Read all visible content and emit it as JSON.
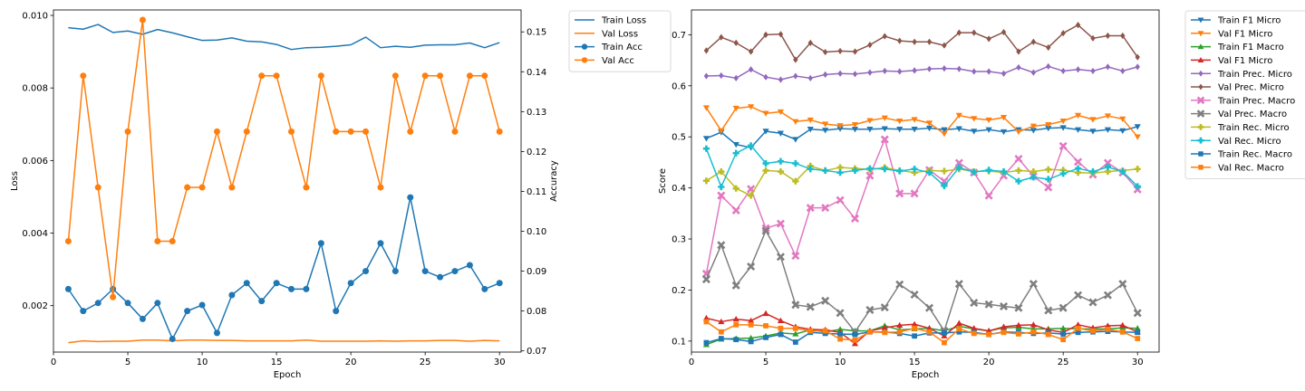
{
  "chart_data": [
    {
      "type": "line",
      "xlabel": "Epoch",
      "ylabel": "Loss",
      "y2label": "Accuracy",
      "xlim": [
        0,
        31.45
      ],
      "ylim": [
        0.00072,
        0.01015
      ],
      "y2lim": [
        0.0697,
        0.1555
      ],
      "xticks": [
        0,
        5,
        10,
        15,
        20,
        25,
        30
      ],
      "yticks": [
        0.002,
        0.004,
        0.006,
        0.008,
        0.01
      ],
      "ytick_labels": [
        "0.002",
        "0.004",
        "0.006",
        "0.008",
        "0.010"
      ],
      "y2ticks": [
        0.07,
        0.08,
        0.09,
        0.1,
        0.11,
        0.12,
        0.13,
        0.14,
        0.15
      ],
      "y2tick_labels": [
        "0.07",
        "0.08",
        "0.09",
        "0.10",
        "0.11",
        "0.12",
        "0.13",
        "0.14",
        "0.15"
      ],
      "legend_position": "outside upper right",
      "x": [
        1,
        2,
        3,
        4,
        5,
        6,
        7,
        8,
        9,
        10,
        11,
        12,
        13,
        14,
        15,
        16,
        17,
        18,
        19,
        20,
        21,
        22,
        23,
        24,
        25,
        26,
        27,
        28,
        29,
        30
      ],
      "series": [
        {
          "name": "Train Loss",
          "axis": "left",
          "color": "#1f77b4",
          "marker": "none",
          "values": [
            0.00966,
            0.00962,
            0.00975,
            0.00953,
            0.00957,
            0.00948,
            0.00961,
            0.00952,
            0.00941,
            0.00931,
            0.00932,
            0.00938,
            0.00929,
            0.00927,
            0.0092,
            0.00906,
            0.00911,
            0.00912,
            0.00915,
            0.00919,
            0.0094,
            0.00911,
            0.00915,
            0.00912,
            0.00918,
            0.00919,
            0.00919,
            0.00924,
            0.00911,
            0.00925
          ]
        },
        {
          "name": "Val Loss",
          "axis": "left",
          "color": "#ff7f0e",
          "marker": "none",
          "values": [
            0.00098,
            0.00103,
            0.00101,
            0.00102,
            0.00102,
            0.00105,
            0.00105,
            0.00103,
            0.00105,
            0.00105,
            0.00104,
            0.00104,
            0.00103,
            0.00103,
            0.00103,
            0.00103,
            0.00105,
            0.00102,
            0.00102,
            0.00102,
            0.00102,
            0.00103,
            0.00102,
            0.00103,
            0.00103,
            0.00104,
            0.00104,
            0.00102,
            0.00104,
            0.00103
          ]
        },
        {
          "name": "Train Acc",
          "axis": "right",
          "color": "#1f77b4",
          "marker": "circle",
          "values": [
            0.0855,
            0.08,
            0.082,
            0.0855,
            0.082,
            0.078,
            0.082,
            0.073,
            0.08,
            0.0815,
            0.0745,
            0.084,
            0.087,
            0.0825,
            0.087,
            0.0855,
            0.0855,
            0.097,
            0.08,
            0.087,
            0.09,
            0.097,
            0.09,
            0.1085,
            0.09,
            0.0885,
            0.09,
            0.0915,
            0.0855,
            0.087
          ]
        },
        {
          "name": "Val Acc",
          "axis": "right",
          "color": "#ff7f0e",
          "marker": "circle",
          "values": [
            0.0975,
            0.139,
            0.111,
            0.0835,
            0.125,
            0.153,
            0.0975,
            0.0975,
            0.111,
            0.111,
            0.125,
            0.111,
            0.125,
            0.139,
            0.139,
            0.125,
            0.111,
            0.139,
            0.125,
            0.125,
            0.125,
            0.111,
            0.139,
            0.125,
            0.139,
            0.139,
            0.125,
            0.139,
            0.139,
            0.125
          ]
        }
      ]
    },
    {
      "type": "line",
      "xlabel": "Epoch",
      "ylabel": "Score",
      "xlim": [
        0,
        31.45
      ],
      "ylim": [
        0.0785,
        0.7485
      ],
      "xticks": [
        0,
        5,
        10,
        15,
        20,
        25,
        30
      ],
      "yticks": [
        0.1,
        0.2,
        0.3,
        0.4,
        0.5,
        0.6,
        0.7
      ],
      "ytick_labels": [
        "0.1",
        "0.2",
        "0.3",
        "0.4",
        "0.5",
        "0.6",
        "0.7"
      ],
      "legend_position": "outside upper right",
      "x": [
        1,
        2,
        3,
        4,
        5,
        6,
        7,
        8,
        9,
        10,
        11,
        12,
        13,
        14,
        15,
        16,
        17,
        18,
        19,
        20,
        21,
        22,
        23,
        24,
        25,
        26,
        27,
        28,
        29,
        30
      ],
      "series": [
        {
          "name": "Train F1 Micro",
          "color": "#1f77b4",
          "marker": "tri_down",
          "values": [
            0.497,
            0.509,
            0.485,
            0.479,
            0.511,
            0.507,
            0.495,
            0.515,
            0.513,
            0.516,
            0.515,
            0.515,
            0.516,
            0.515,
            0.515,
            0.517,
            0.514,
            0.516,
            0.511,
            0.514,
            0.51,
            0.514,
            0.513,
            0.517,
            0.518,
            0.514,
            0.511,
            0.514,
            0.512,
            0.52
          ]
        },
        {
          "name": "Val F1 Micro",
          "color": "#ff7f0e",
          "marker": "tri_down",
          "values": [
            0.557,
            0.512,
            0.556,
            0.559,
            0.546,
            0.549,
            0.53,
            0.533,
            0.525,
            0.522,
            0.524,
            0.532,
            0.537,
            0.531,
            0.534,
            0.527,
            0.506,
            0.542,
            0.536,
            0.533,
            0.538,
            0.51,
            0.521,
            0.524,
            0.531,
            0.542,
            0.534,
            0.541,
            0.535,
            0.5
          ]
        },
        {
          "name": "Train F1 Macro",
          "color": "#2ca02c",
          "marker": "tri_up",
          "values": [
            0.093,
            0.104,
            0.105,
            0.106,
            0.11,
            0.116,
            0.114,
            0.122,
            0.118,
            0.123,
            0.12,
            0.12,
            0.13,
            0.122,
            0.124,
            0.125,
            0.12,
            0.129,
            0.124,
            0.12,
            0.126,
            0.127,
            0.124,
            0.124,
            0.125,
            0.124,
            0.124,
            0.124,
            0.126,
            0.125
          ]
        },
        {
          "name": "Val F1 Micro",
          "color": "#d62728",
          "marker": "tri_up",
          "values": [
            0.145,
            0.138,
            0.143,
            0.14,
            0.154,
            0.14,
            0.128,
            0.123,
            0.122,
            0.117,
            0.095,
            0.12,
            0.126,
            0.131,
            0.133,
            0.125,
            0.11,
            0.135,
            0.125,
            0.12,
            0.128,
            0.131,
            0.132,
            0.122,
            0.117,
            0.132,
            0.126,
            0.13,
            0.131,
            0.118
          ]
        },
        {
          "name": "Train Prec. Micro",
          "color": "#9467bd",
          "marker": "diamond",
          "values": [
            0.619,
            0.62,
            0.615,
            0.632,
            0.617,
            0.612,
            0.619,
            0.615,
            0.622,
            0.624,
            0.623,
            0.626,
            0.629,
            0.628,
            0.63,
            0.633,
            0.634,
            0.633,
            0.628,
            0.628,
            0.624,
            0.636,
            0.626,
            0.638,
            0.629,
            0.632,
            0.629,
            0.637,
            0.629,
            0.637
          ]
        },
        {
          "name": "Val Prec. Micro",
          "color": "#8c564b",
          "marker": "diamond",
          "values": [
            0.669,
            0.695,
            0.684,
            0.667,
            0.7,
            0.701,
            0.651,
            0.684,
            0.666,
            0.668,
            0.667,
            0.68,
            0.697,
            0.688,
            0.686,
            0.686,
            0.679,
            0.704,
            0.704,
            0.692,
            0.705,
            0.667,
            0.686,
            0.675,
            0.703,
            0.719,
            0.693,
            0.698,
            0.698,
            0.656
          ]
        },
        {
          "name": "Train Prec. Macro",
          "color": "#e377c2",
          "marker": "x",
          "values": [
            0.232,
            0.385,
            0.356,
            0.398,
            0.321,
            0.33,
            0.267,
            0.361,
            0.361,
            0.376,
            0.34,
            0.424,
            0.495,
            0.389,
            0.389,
            0.435,
            0.413,
            0.449,
            0.43,
            0.385,
            0.424,
            0.457,
            0.423,
            0.401,
            0.482,
            0.451,
            0.426,
            0.449,
            0.43,
            0.397
          ]
        },
        {
          "name": "Val Prec. Macro",
          "color": "#7f7f7f",
          "marker": "x",
          "values": [
            0.221,
            0.288,
            0.209,
            0.246,
            0.316,
            0.265,
            0.171,
            0.167,
            0.179,
            0.155,
            0.118,
            0.161,
            0.166,
            0.211,
            0.191,
            0.165,
            0.12,
            0.212,
            0.175,
            0.172,
            0.168,
            0.165,
            0.212,
            0.16,
            0.165,
            0.19,
            0.176,
            0.19,
            0.212,
            0.155
          ]
        },
        {
          "name": "Train Rec. Micro",
          "color": "#bcbd22",
          "marker": "plus",
          "values": [
            0.414,
            0.432,
            0.399,
            0.385,
            0.434,
            0.432,
            0.413,
            0.443,
            0.434,
            0.44,
            0.438,
            0.436,
            0.44,
            0.434,
            0.43,
            0.434,
            0.433,
            0.437,
            0.432,
            0.433,
            0.43,
            0.434,
            0.432,
            0.436,
            0.435,
            0.43,
            0.429,
            0.432,
            0.434,
            0.437
          ]
        },
        {
          "name": "Val Rec. Micro",
          "color": "#17becf",
          "marker": "plus",
          "values": [
            0.477,
            0.402,
            0.468,
            0.483,
            0.448,
            0.452,
            0.448,
            0.437,
            0.434,
            0.43,
            0.434,
            0.438,
            0.437,
            0.433,
            0.437,
            0.43,
            0.404,
            0.44,
            0.431,
            0.435,
            0.432,
            0.413,
            0.421,
            0.417,
            0.428,
            0.438,
            0.432,
            0.441,
            0.432,
            0.403
          ]
        },
        {
          "name": "Train Rec. Macro",
          "color": "#1f77b4",
          "marker": "square",
          "values": [
            0.097,
            0.105,
            0.103,
            0.099,
            0.107,
            0.113,
            0.098,
            0.117,
            0.115,
            0.114,
            0.113,
            0.118,
            0.118,
            0.115,
            0.11,
            0.116,
            0.116,
            0.118,
            0.117,
            0.113,
            0.118,
            0.117,
            0.115,
            0.116,
            0.114,
            0.117,
            0.118,
            0.119,
            0.118,
            0.117
          ]
        },
        {
          "name": "Val Rec. Macro",
          "color": "#ff7f0e",
          "marker": "square",
          "values": [
            0.138,
            0.118,
            0.132,
            0.132,
            0.13,
            0.125,
            0.125,
            0.12,
            0.12,
            0.104,
            0.102,
            0.118,
            0.117,
            0.118,
            0.125,
            0.118,
            0.097,
            0.124,
            0.115,
            0.113,
            0.117,
            0.114,
            0.118,
            0.113,
            0.103,
            0.125,
            0.12,
            0.123,
            0.118,
            0.105
          ]
        }
      ]
    }
  ]
}
